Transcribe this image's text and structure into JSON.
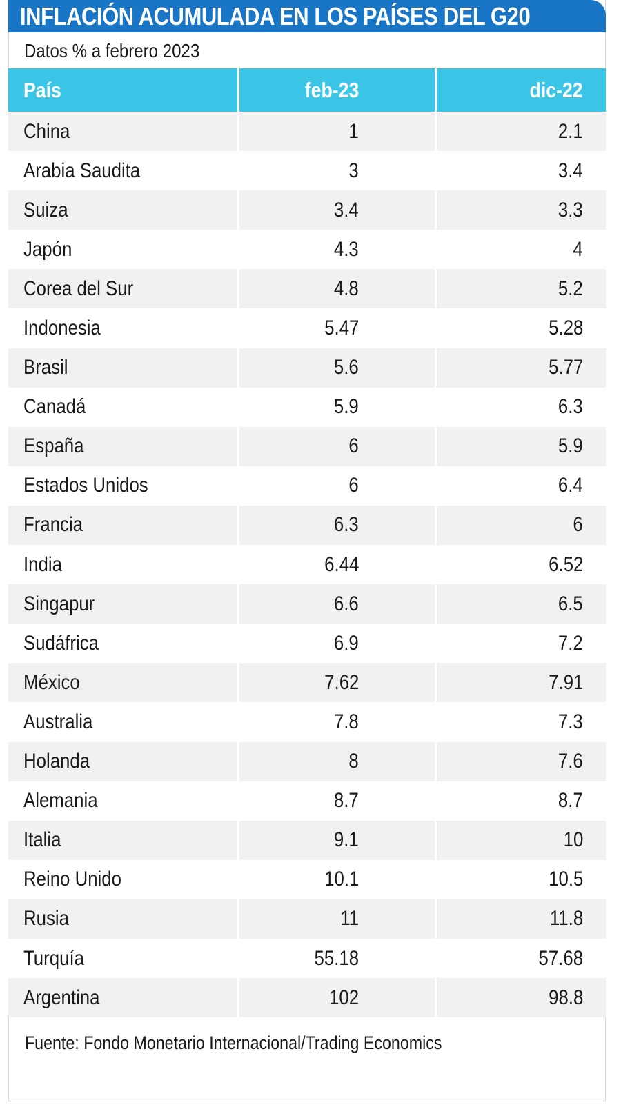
{
  "title": "INFLACIÓN ACUMULADA EN LOS PAÍSES DEL G20",
  "subtitle": "Datos % a febrero 2023",
  "source": "Fuente: Fondo Monetario Internacional/Trading Economics",
  "colors": {
    "title_bar": "#1976c6",
    "header_row": "#3ac4e6",
    "stripe": "#f1f1f1"
  },
  "chart_data": {
    "type": "table",
    "title": "INFLACIÓN ACUMULADA EN LOS PAÍSES DEL G20",
    "subtitle": "Datos % a febrero 2023",
    "columns": [
      "País",
      "feb-23",
      "dic-22"
    ],
    "rows": [
      [
        "China",
        "1",
        "2.1"
      ],
      [
        "Arabia Saudita",
        "3",
        "3.4"
      ],
      [
        "Suiza",
        "3.4",
        "3.3"
      ],
      [
        "Japón",
        "4.3",
        "4"
      ],
      [
        "Corea del Sur",
        "4.8",
        "5.2"
      ],
      [
        "Indonesia",
        "5.47",
        "5.28"
      ],
      [
        "Brasil",
        "5.6",
        "5.77"
      ],
      [
        "Canadá",
        "5.9",
        "6.3"
      ],
      [
        "España",
        "6",
        "5.9"
      ],
      [
        "Estados Unidos",
        "6",
        "6.4"
      ],
      [
        "Francia",
        "6.3",
        "6"
      ],
      [
        "India",
        "6.44",
        "6.52"
      ],
      [
        "Singapur",
        "6.6",
        "6.5"
      ],
      [
        "Sudáfrica",
        "6.9",
        "7.2"
      ],
      [
        "México",
        "7.62",
        "7.91"
      ],
      [
        "Australia",
        "7.8",
        "7.3"
      ],
      [
        "Holanda",
        "8",
        "7.6"
      ],
      [
        "Alemania",
        "8.7",
        "8.7"
      ],
      [
        "Italia",
        "9.1",
        "10"
      ],
      [
        "Reino Unido",
        "10.1",
        "10.5"
      ],
      [
        "Rusia",
        "11",
        "11.8"
      ],
      [
        "Turquía",
        "55.18",
        "57.68"
      ],
      [
        "Argentina",
        "102",
        "98.8"
      ]
    ]
  }
}
